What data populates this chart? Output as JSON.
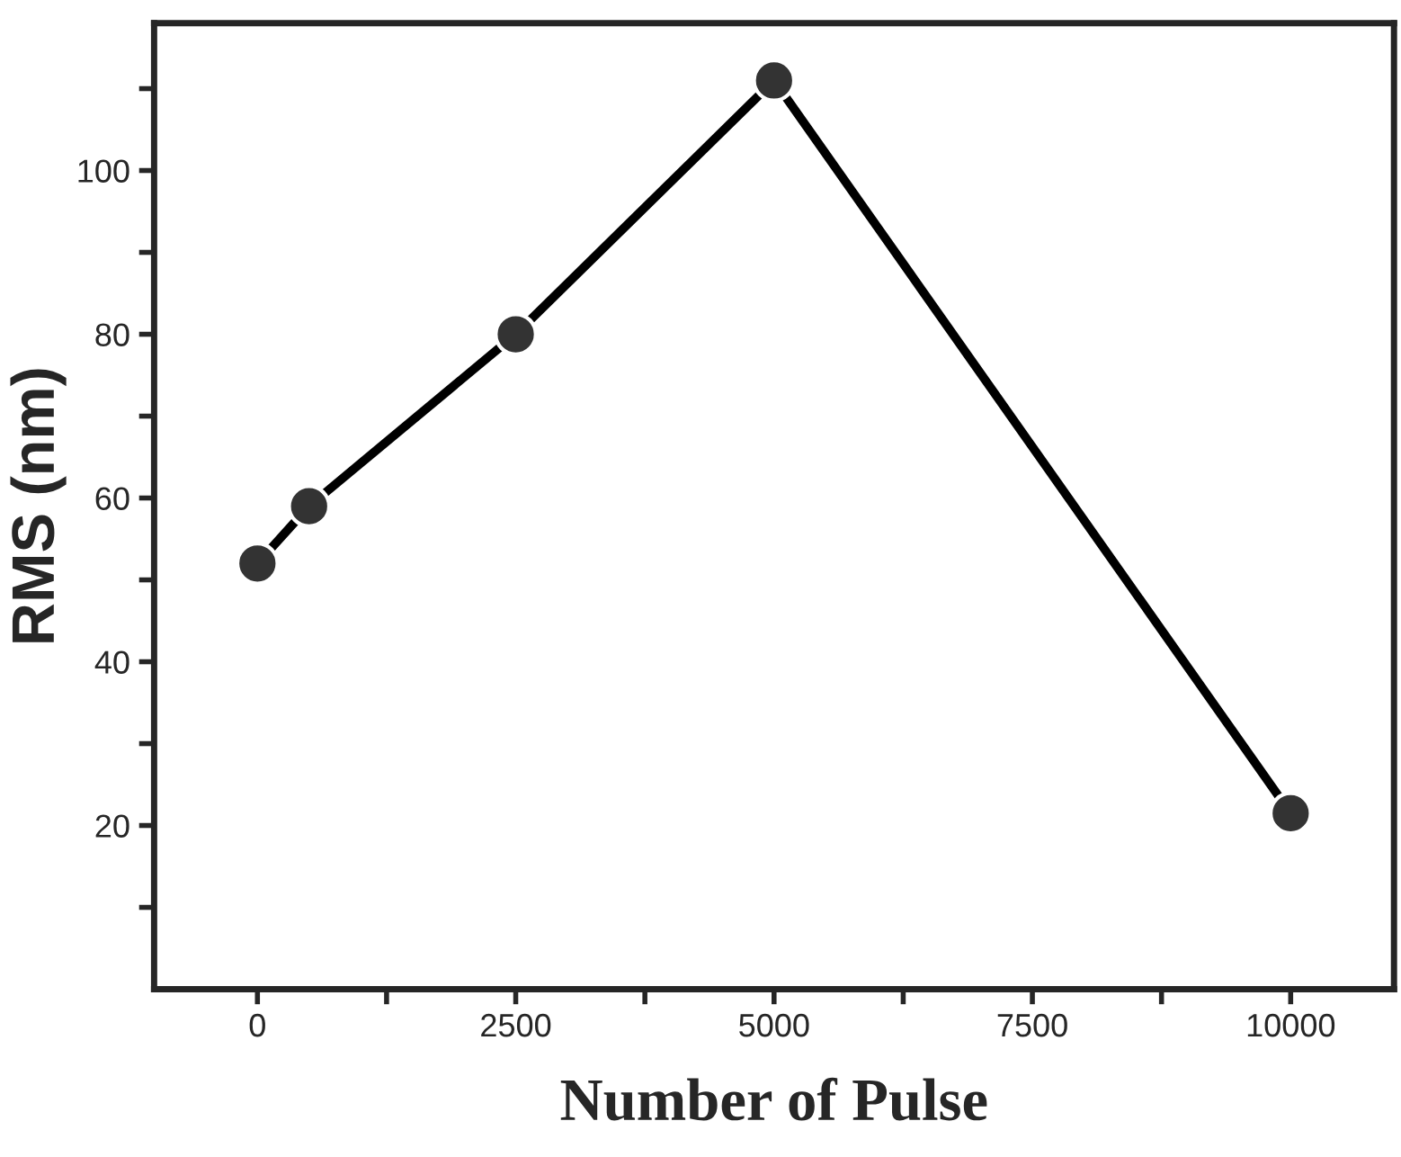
{
  "chart_data": {
    "type": "line",
    "xlabel": "Number of Pulse",
    "ylabel": "RMS (nm)",
    "x": [
      0,
      500,
      2500,
      5000,
      10000
    ],
    "series": [
      {
        "color": "#000000",
        "values": [
          52,
          59,
          80,
          111,
          21.5
        ]
      }
    ],
    "marker": "circle",
    "line_style": "solid",
    "grid": false,
    "legend": false,
    "xlim": [
      -1000,
      11000
    ],
    "ylim": [
      0,
      118
    ],
    "xticks": [
      0,
      {
        "value": 1250,
        "label": null
      },
      2500,
      {
        "value": 3750,
        "label": null
      },
      5000,
      {
        "value": 6250,
        "label": null
      },
      7500,
      {
        "value": 8750,
        "label": null
      },
      10000
    ],
    "yticks": [
      {
        "value": 10,
        "label": null
      },
      20,
      {
        "value": 30,
        "label": null
      },
      40,
      {
        "value": 50,
        "label": null
      },
      60,
      {
        "value": 70,
        "label": null
      },
      80,
      {
        "value": 90,
        "label": null
      },
      100,
      {
        "value": 110,
        "label": null
      }
    ]
  }
}
